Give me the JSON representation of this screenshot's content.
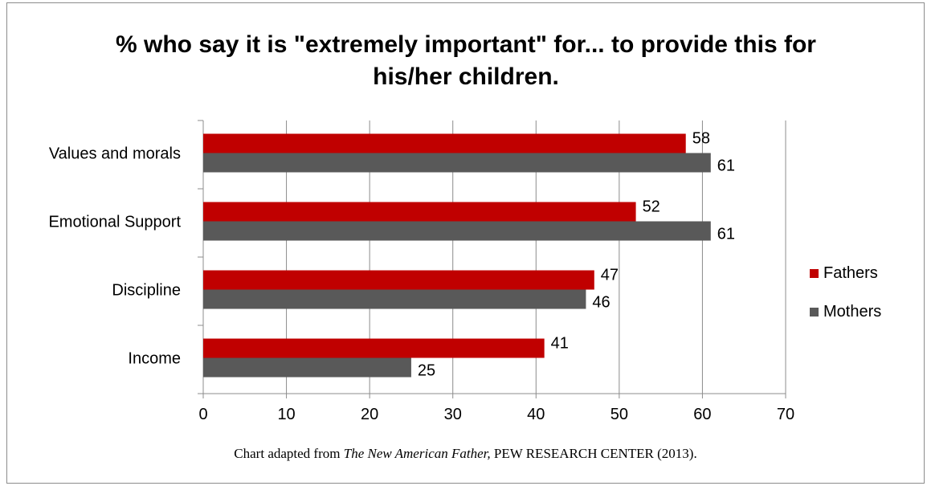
{
  "chart_data": {
    "type": "bar",
    "orientation": "horizontal",
    "title": "% who say it is \"extremely important\" for... to provide this for his/her children.",
    "categories": [
      "Values and morals",
      "Emotional Support",
      "Discipline",
      "Income"
    ],
    "series": [
      {
        "name": "Fathers",
        "color": "#c00000",
        "values": [
          58,
          52,
          47,
          41
        ]
      },
      {
        "name": "Mothers",
        "color": "#595959",
        "values": [
          61,
          61,
          46,
          25
        ]
      }
    ],
    "xlim": [
      0,
      70
    ],
    "x_ticks": [
      0,
      10,
      20,
      30,
      40,
      50,
      60,
      70
    ],
    "grid": "vertical",
    "legend": "right",
    "data_labels": true
  },
  "caption": {
    "before": "Chart adapted from ",
    "source_title": "The New American Father,",
    "after": " PEW RESEARCH CENTER (2013)."
  }
}
